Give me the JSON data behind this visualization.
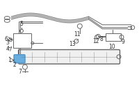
{
  "bg_color": "#ffffff",
  "fig_width": 2.0,
  "fig_height": 1.47,
  "dpi": 100,
  "line_color": "#666666",
  "highlight_color": "#5599cc",
  "label_color": "#333333"
}
